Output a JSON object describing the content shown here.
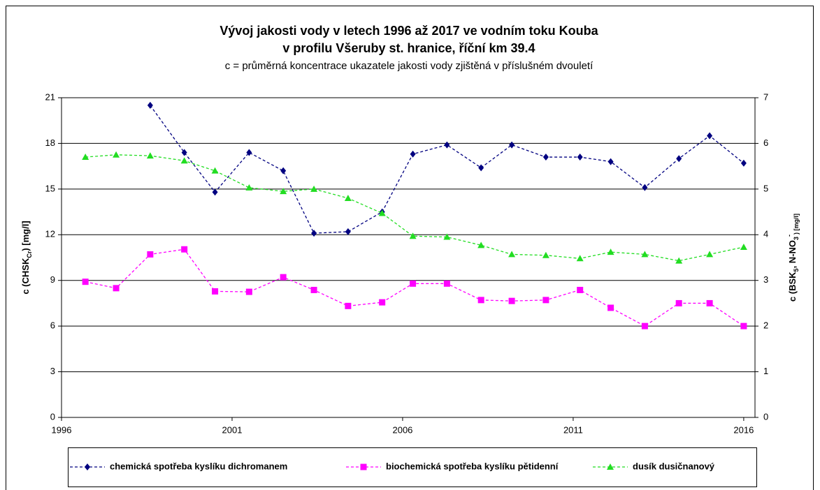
{
  "chart_data": {
    "type": "line",
    "title": "Vývoj jakosti vody v letech 1996 až 2017 ve vodním toku Kouba",
    "title_line2": "v profilu Všeruby st. hranice, říční km 39.4",
    "subtitle": "c = průměrná koncentrace ukazatele jakosti vody zjištěná v příslušném dvouletí",
    "y_label": [
      "c (CHSK",
      "Cr",
      ") [mg/l]"
    ],
    "y2_label": [
      "c (BSK",
      "5",
      ", N-NO",
      "3",
      "-",
      ") [mg/l]"
    ],
    "x": [
      1996.7,
      1997.6,
      1998.6,
      1999.6,
      2000.5,
      2001.5,
      2002.5,
      2003.4,
      2004.4,
      2005.4,
      2006.3,
      2007.3,
      2008.3,
      2009.2,
      2010.2,
      2011.2,
      2012.1,
      2013.1,
      2014.1,
      2015.0,
      2016.0
    ],
    "xlim": [
      1996,
      2016.33
    ],
    "xticks": [
      1996,
      2001,
      2006,
      2011,
      2016
    ],
    "ylim": [
      0,
      21
    ],
    "yticks": [
      0,
      3,
      6,
      9,
      12,
      15,
      18,
      21
    ],
    "y2lim": [
      0,
      7
    ],
    "y2ticks": [
      0,
      1,
      2,
      3,
      4,
      5,
      6,
      7
    ],
    "grid": true,
    "legend": "bottom",
    "series": [
      {
        "name": "chemická spotřeba kyslíku dichromanem",
        "color": "#000080",
        "marker": "diamond",
        "values": [
          null,
          null,
          20.5,
          17.4,
          14.8,
          17.4,
          16.2,
          12.1,
          12.2,
          13.5,
          17.3,
          17.9,
          16.4,
          17.9,
          17.1,
          17.1,
          16.8,
          15.1,
          17.0,
          18.5,
          16.7
        ]
      },
      {
        "name": "biochemická spotřeba kyslíku pětidenní",
        "color": "#ff00ff",
        "marker": "square",
        "axis": "y2",
        "values": [
          2.97,
          2.83,
          3.57,
          3.68,
          2.76,
          2.75,
          3.07,
          2.79,
          2.44,
          2.52,
          2.93,
          2.93,
          2.57,
          2.55,
          2.57,
          2.79,
          2.4,
          2.0,
          2.5,
          2.5,
          2.0
        ]
      },
      {
        "name": "dusík dusičnanový",
        "color": "#22dd22",
        "marker": "triangle",
        "axis": "y2",
        "values": [
          5.7,
          5.75,
          5.73,
          5.62,
          5.4,
          5.03,
          4.95,
          5.0,
          4.8,
          4.47,
          3.97,
          3.95,
          3.77,
          3.57,
          3.55,
          3.48,
          3.62,
          3.57,
          3.43,
          3.57,
          3.73
        ]
      }
    ]
  }
}
